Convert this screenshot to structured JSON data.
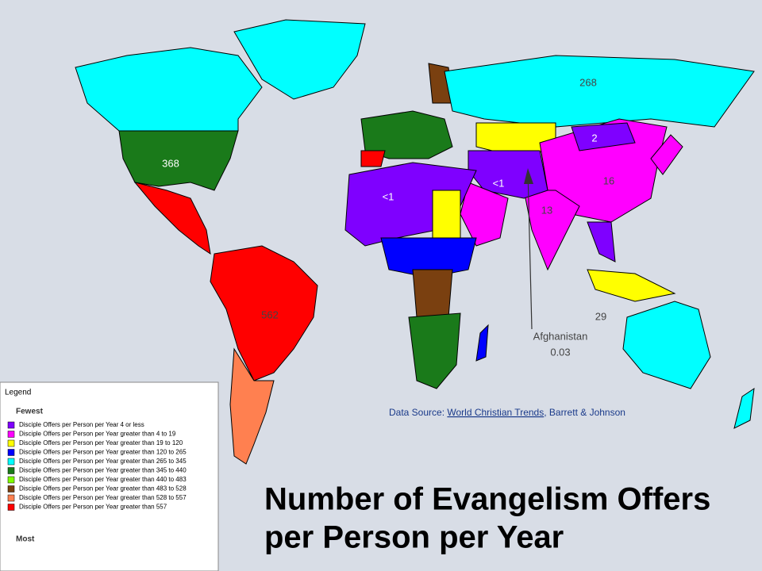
{
  "title": [
    "Number of Evangelism Offers",
    "per Person per Year"
  ],
  "map_labels": [
    {
      "text": "268"
    },
    {
      "text": "2"
    },
    {
      "text": "16"
    },
    {
      "text": "13"
    },
    {
      "text": "<1"
    },
    {
      "text": "<1"
    },
    {
      "text": "368"
    },
    {
      "text": "562"
    },
    {
      "text": "29"
    }
  ],
  "annotation": {
    "text": "Afghanistan",
    "value": "0.03"
  },
  "source": {
    "prefix": "Data Source:",
    "link": "World Christian Trends",
    "suffix": ", Barrett & Johnson"
  },
  "legend": {
    "title": "Legend",
    "top": "Fewest",
    "bottom": "Most",
    "items": [
      {
        "label": "Disciple Offers per Person per Year 4 or less",
        "color": "#7f00ff"
      },
      {
        "label": "Disciple Offers per Person per Year greater than 4 to 19",
        "color": "#ff00ff"
      },
      {
        "label": "Disciple Offers per Person per Year greater than 19 to 120",
        "color": "#ffff00"
      },
      {
        "label": "Disciple Offers per Person per Year greater than 120 to 265",
        "color": "#0000ff"
      },
      {
        "label": "Disciple Offers per Person per Year greater than 265 to 345",
        "color": "#00ffff"
      },
      {
        "label": "Disciple Offers per Person per Year greater than 345 to 440",
        "color": "#1a7a1a"
      },
      {
        "label": "Disciple Offers per Person per Year greater than 440 to 483",
        "color": "#80ff00"
      },
      {
        "label": "Disciple Offers per Person per Year greater than 483 to 528",
        "color": "#7a4010"
      },
      {
        "label": "Disciple Offers per Person per Year greater than 528 to 557",
        "color": "#ff8050"
      },
      {
        "label": "Disciple Offers per Person per Year greater than 557",
        "color": "#ff0000"
      }
    ]
  }
}
